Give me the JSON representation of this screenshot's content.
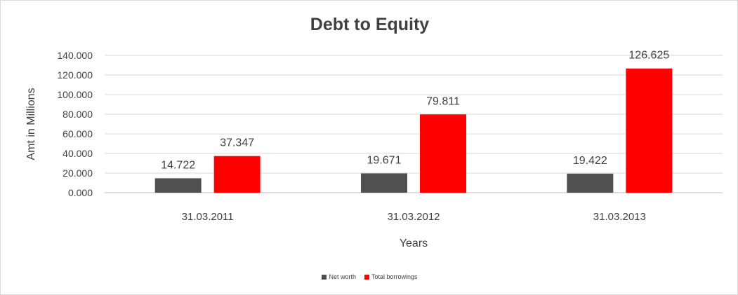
{
  "chart_data": {
    "type": "bar",
    "title": "Debt to Equity",
    "xlabel": "Years",
    "ylabel": "Amt in Millions",
    "categories": [
      "31.03.2011",
      "31.03.2012",
      "31.03.2013"
    ],
    "series": [
      {
        "name": "Net worth",
        "color": "#505050",
        "values": [
          14.722,
          19.671,
          19.422
        ],
        "labels": [
          "14.722",
          "19.671",
          "19.422"
        ]
      },
      {
        "name": "Total borrowings",
        "color": "#ff0000",
        "values": [
          37.347,
          79.811,
          126.625
        ],
        "labels": [
          "37.347",
          "79.811",
          "126.625"
        ]
      }
    ],
    "ylim": [
      0,
      140
    ],
    "yticks": [
      "0.000",
      "20.000",
      "40.000",
      "60.000",
      "80.000",
      "100.000",
      "120.000",
      "140.000"
    ],
    "grid": true,
    "legend_position": "bottom"
  }
}
